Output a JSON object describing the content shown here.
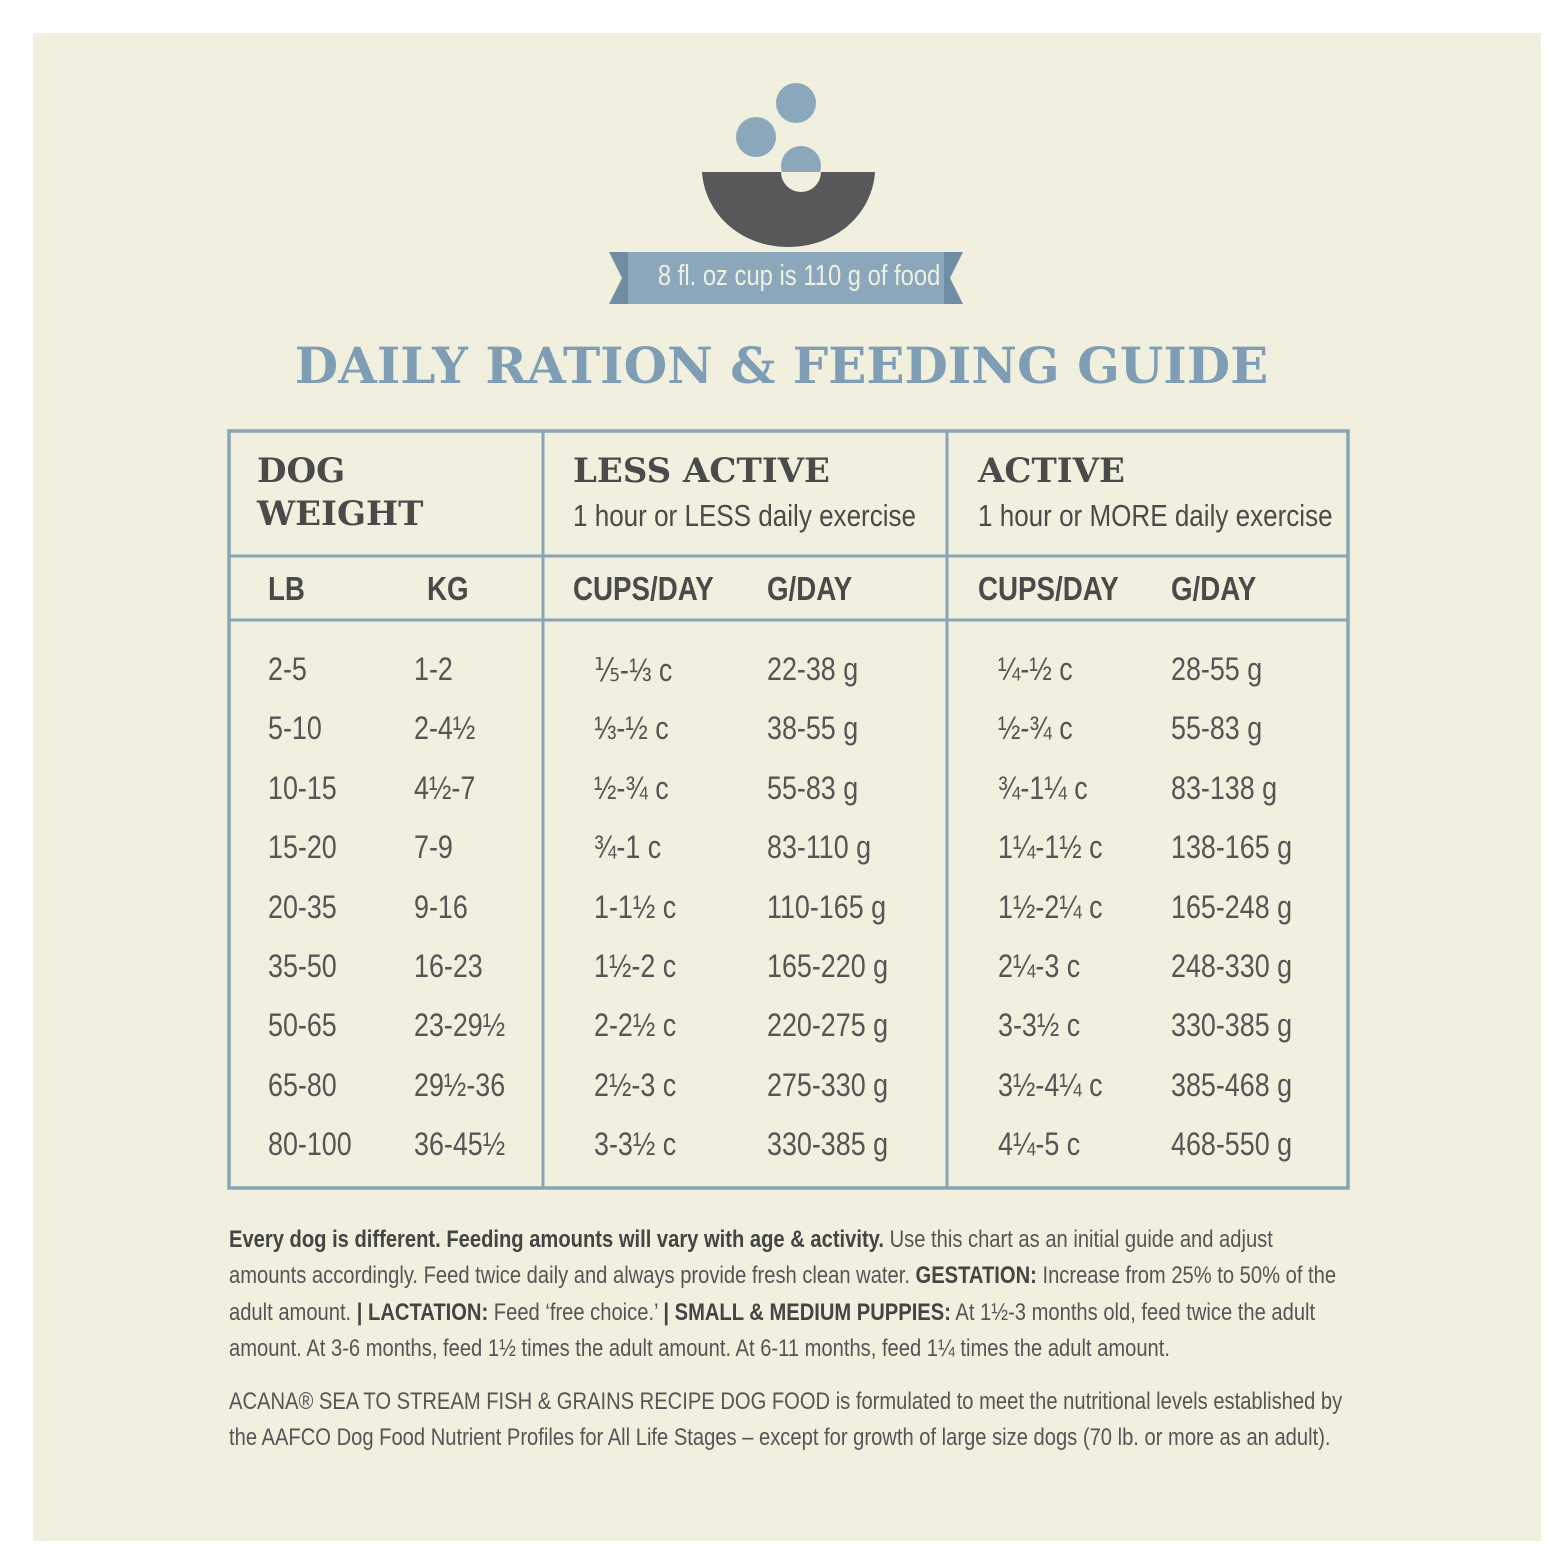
{
  "header": {
    "cup_note": "8 fl. oz cup is 110 g of food",
    "title": "DAILY RATION & FEEDING GUIDE"
  },
  "table": {
    "groups": [
      {
        "title": "DOG WEIGHT"
      },
      {
        "title": "LESS ACTIVE",
        "subtitle": "1 hour or LESS daily exercise"
      },
      {
        "title": "ACTIVE",
        "subtitle": "1 hour or MORE daily exercise"
      }
    ],
    "columns": [
      "LB",
      "KG",
      "CUPS/DAY",
      "G/DAY",
      "CUPS/DAY",
      "G/DAY"
    ],
    "rows": [
      [
        "2-5",
        "1-2",
        "⅕-⅓ c",
        "22-38 g",
        "¼-½ c",
        "28-55 g"
      ],
      [
        "5-10",
        "2-4½",
        "⅓-½ c",
        "38-55 g",
        "½-¾ c",
        "55-83 g"
      ],
      [
        "10-15",
        "4½-7",
        "½-¾ c",
        "55-83 g",
        "¾-1¼ c",
        "83-138 g"
      ],
      [
        "15-20",
        "7-9",
        "¾-1 c",
        "83-110 g",
        "1¼-1½ c",
        "138-165 g"
      ],
      [
        "20-35",
        "9-16",
        "1-1½ c",
        "110-165 g",
        "1½-2¼ c",
        "165-248 g"
      ],
      [
        "35-50",
        "16-23",
        "1½-2 c",
        "165-220 g",
        "2¼-3 c",
        "248-330 g"
      ],
      [
        "50-65",
        "23-29½",
        "2-2½ c",
        "220-275 g",
        "3-3½ c",
        "330-385 g"
      ],
      [
        "65-80",
        "29½-36",
        "2½-3 c",
        "275-330 g",
        "3½-4¼ c",
        "385-468 g"
      ],
      [
        "80-100",
        "36-45½",
        "3-3½ c",
        "330-385 g",
        "4¼-5 c",
        "468-550 g"
      ]
    ]
  },
  "notes": {
    "paragraph": [
      {
        "text": "Every dog is different. Feeding amounts will vary with age & activity.",
        "bold": true
      },
      {
        "text": " Use this chart as an initial guide and adjust amounts accordingly. Feed twice daily and always provide fresh clean water. "
      },
      {
        "text": "GESTATION:",
        "bold": true
      },
      {
        "text": " Increase from 25% to 50% of the adult amount. "
      },
      {
        "text": "| LACTATION:",
        "bold": true
      },
      {
        "text": " Feed ‘free choice.’ "
      },
      {
        "text": "| SMALL & MEDIUM PUPPIES:",
        "bold": true
      },
      {
        "text": " At 1½-3 months old, feed twice the adult amount. At 3-6 months, feed 1½ times the adult amount. At 6-11 months, feed 1¼ times the adult amount."
      }
    ],
    "statement": "ACANA® SEA TO STREAM FISH & GRAINS RECIPE DOG FOOD is formulated to meet the nutritional levels established by the AAFCO Dog Food Nutrient Profiles for All Life Stages – except for growth of large size dogs (70 lb. or more as an adult)."
  }
}
